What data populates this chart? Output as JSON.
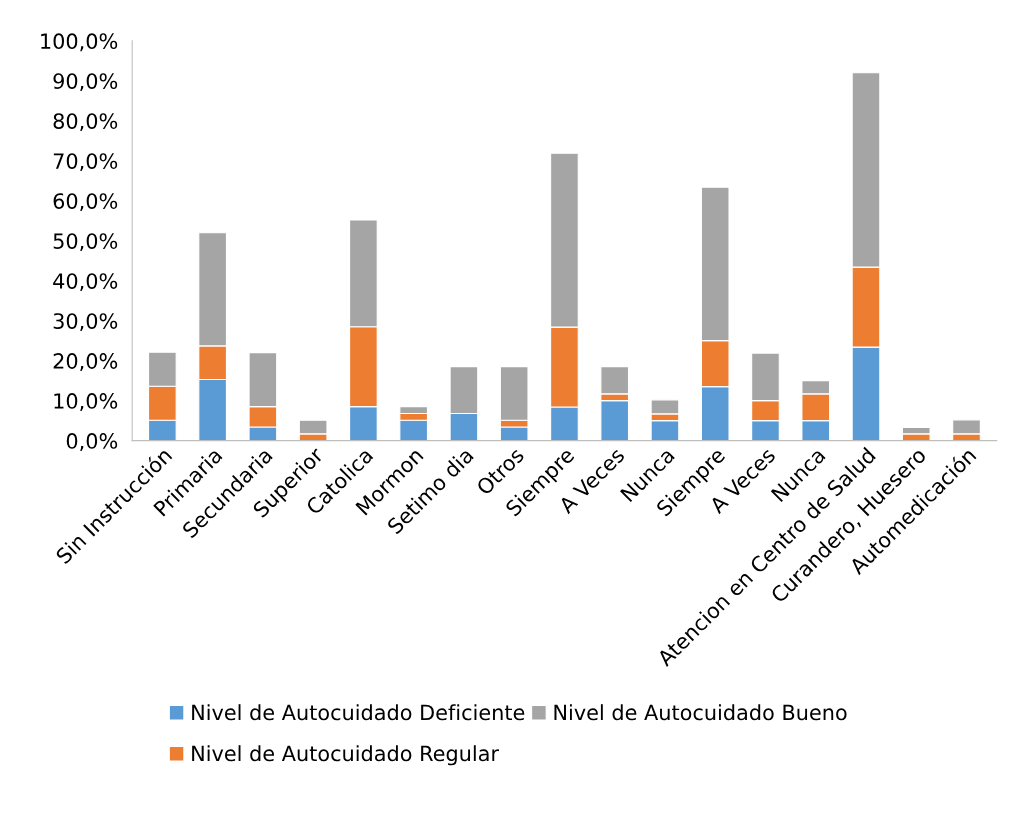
{
  "chart_data": {
    "type": "bar",
    "stacked": true,
    "legend": "bottom",
    "grid": false,
    "categories": [
      "Sin Instrucción",
      "Primaria",
      "Secundaria",
      "Superior",
      "Catolica",
      "Mormon",
      "Setimo dia",
      "Otros",
      "Siempre",
      "A Veces",
      "Nunca",
      "Siempre",
      "A Veces",
      "Nunca",
      "Atencion en Centro de Salud",
      "Curandero, Huesero",
      "Automedicación"
    ],
    "series": [
      {
        "name": "Nivel de Autocuidado Deficiente",
        "color": "#5b9bd5",
        "values": [
          5.1,
          15.3,
          3.4,
          0,
          8.5,
          5.1,
          6.8,
          3.4,
          8.4,
          10.0,
          5.0,
          13.5,
          5.0,
          5.0,
          23.4,
          0,
          0
        ]
      },
      {
        "name": "Nivel de Autocuidado Regular",
        "color": "#ed7d31",
        "values": [
          8.5,
          8.4,
          5.1,
          1.7,
          20.0,
          1.7,
          0,
          1.7,
          20.0,
          1.7,
          1.7,
          11.5,
          5.0,
          6.7,
          20.0,
          1.7,
          1.7
        ]
      },
      {
        "name": "Nivel de Autocuidado Bueno",
        "color": "#a5a5a5",
        "values": [
          8.5,
          28.3,
          13.5,
          3.4,
          26.7,
          1.7,
          11.7,
          13.4,
          43.5,
          6.8,
          3.5,
          38.4,
          11.9,
          3.3,
          48.6,
          1.6,
          3.5
        ]
      }
    ],
    "ylim": [
      0,
      100
    ],
    "yticks": [
      {
        "value": 0,
        "label": "0,0%"
      },
      {
        "value": 10,
        "label": "10,0%"
      },
      {
        "value": 20,
        "label": "20,0%"
      },
      {
        "value": 30,
        "label": "30,0%"
      },
      {
        "value": 40,
        "label": "40,0%"
      },
      {
        "value": 50,
        "label": "50,0%"
      },
      {
        "value": 60,
        "label": "60,0%"
      },
      {
        "value": 70,
        "label": "70,0%"
      },
      {
        "value": 80,
        "label": "80,0%"
      },
      {
        "value": 90,
        "label": "90,0%"
      },
      {
        "value": 100,
        "label": "100,0%"
      }
    ]
  }
}
